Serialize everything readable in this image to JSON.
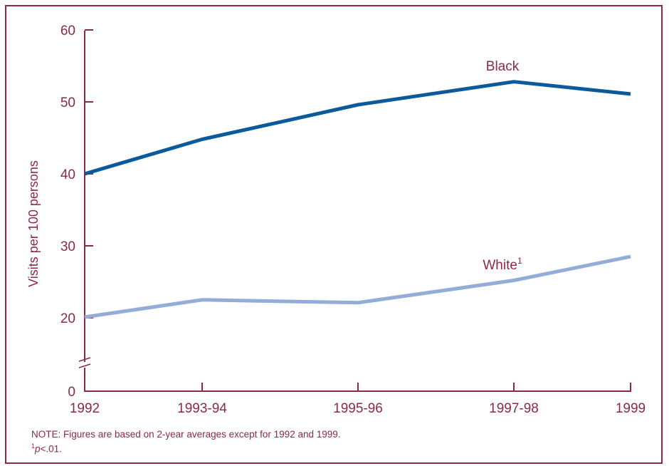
{
  "chart_data": {
    "type": "line",
    "ylabel": "Visits per 100 persons",
    "xlabel": "",
    "categories": [
      "1992",
      "1993-94",
      "1995-96",
      "1997-98",
      "1999"
    ],
    "yticks": [
      0,
      20,
      30,
      40,
      50,
      60
    ],
    "ylim": [
      0,
      60
    ],
    "axis_break": true,
    "grid": false,
    "series": [
      {
        "name": "Black",
        "values": [
          40,
          44.8,
          49.6,
          52.8,
          51.1
        ],
        "color": "#0b5a9c"
      },
      {
        "name": "White",
        "sup": "1",
        "values": [
          20.1,
          22.5,
          22.1,
          25.2,
          28.5
        ],
        "color": "#93acd8"
      }
    ]
  },
  "note": {
    "line1": "NOTE: Figures are based on 2-year averages except for 1992 and 1999.",
    "fn_mark": "1",
    "fn_p": "p",
    "fn_rest": "<.01."
  }
}
